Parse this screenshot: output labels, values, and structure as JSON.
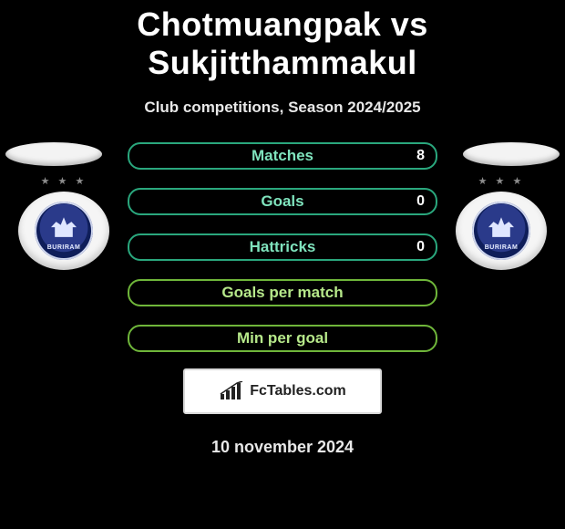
{
  "header": {
    "title": "Chotmuangpak vs Sukjitthammakul",
    "subtitle": "Club competitions, Season 2024/2025"
  },
  "colors": {
    "row_border_teal": "#2aa77d",
    "row_text_teal": "#7fe3bd",
    "row_border_green": "#6fb63a",
    "row_text_green": "#b6e88a",
    "value_color": "#ffffff"
  },
  "stats": [
    {
      "label": "Matches",
      "value_right": "8",
      "style": "teal"
    },
    {
      "label": "Goals",
      "value_right": "0",
      "style": "teal"
    },
    {
      "label": "Hattricks",
      "value_right": "0",
      "style": "teal"
    },
    {
      "label": "Goals per match",
      "value_right": "",
      "style": "green"
    },
    {
      "label": "Min per goal",
      "value_right": "",
      "style": "green"
    }
  ],
  "brand": {
    "text": "FcTables.com"
  },
  "date": "10 november 2024",
  "badge": {
    "crest_text": "BURIRAM"
  }
}
